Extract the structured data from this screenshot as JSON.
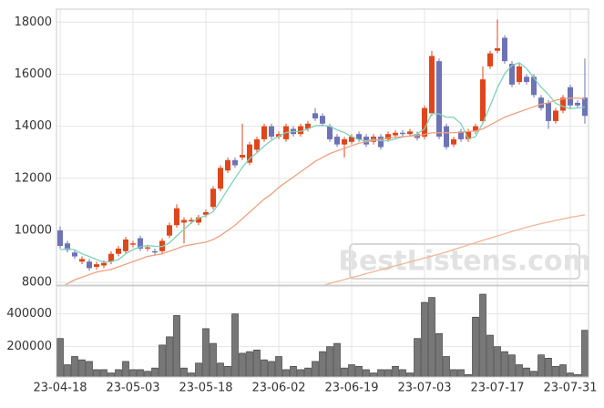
{
  "chart_data": [
    {
      "type": "candlestick",
      "open": [
        10000,
        9500,
        9150,
        8800,
        8800,
        8600,
        8650,
        8800,
        9100,
        9200,
        9450,
        9700,
        9300,
        9200,
        9200,
        9800,
        10200,
        10300,
        10350,
        10300,
        10600,
        10900,
        11600,
        12300,
        12700,
        12800,
        12600,
        13100,
        13500,
        14000,
        13600,
        13500,
        13900,
        13700,
        13900,
        14500,
        14400,
        14000,
        13600,
        13300,
        13400,
        13700,
        13600,
        13400,
        13600,
        13500,
        13650,
        13750,
        13700,
        13700,
        13600,
        14500,
        16500,
        14000,
        13300,
        13800,
        13500,
        13800,
        14200,
        16300,
        16900,
        17400,
        16400,
        15700,
        15900,
        15900,
        15100,
        14900,
        14200,
        14600,
        15500,
        14900,
        15100
      ],
      "high": [
        10150,
        9600,
        9250,
        9000,
        8900,
        8800,
        8850,
        9200,
        9400,
        9750,
        9600,
        9800,
        9450,
        9300,
        9700,
        10300,
        11000,
        10500,
        10500,
        10600,
        10800,
        11700,
        12500,
        12800,
        12800,
        14100,
        13400,
        13600,
        14100,
        14100,
        13800,
        14100,
        14000,
        14100,
        14200,
        14700,
        14500,
        14100,
        13700,
        13600,
        13700,
        13800,
        13700,
        13700,
        13700,
        13800,
        13850,
        13850,
        13900,
        13800,
        14800,
        16900,
        16600,
        14100,
        13600,
        13900,
        13900,
        14100,
        16300,
        16900,
        18100,
        17500,
        16500,
        16400,
        16000,
        16000,
        15200,
        15000,
        14700,
        15200,
        15600,
        15000,
        16600
      ],
      "low": [
        9300,
        9150,
        8900,
        8700,
        8450,
        8500,
        8550,
        8700,
        9000,
        9100,
        9350,
        9200,
        9200,
        9050,
        9100,
        9700,
        10100,
        9500,
        10250,
        10200,
        10500,
        10800,
        11500,
        12200,
        12400,
        12700,
        12500,
        13000,
        13400,
        13500,
        13500,
        13400,
        13600,
        13600,
        13800,
        14200,
        14000,
        13400,
        13200,
        12800,
        13300,
        13400,
        13200,
        13300,
        13100,
        13400,
        13550,
        13600,
        13600,
        13450,
        13500,
        14400,
        13500,
        13100,
        13200,
        13400,
        13400,
        13700,
        14100,
        16200,
        16800,
        16400,
        15500,
        15600,
        15600,
        15100,
        14600,
        13900,
        14100,
        14500,
        14700,
        14700,
        14100
      ],
      "close": [
        9400,
        9250,
        9000,
        8900,
        8550,
        8700,
        8750,
        9100,
        9300,
        9650,
        9500,
        9300,
        9350,
        9150,
        9600,
        10200,
        10850,
        10400,
        10400,
        10500,
        10700,
        11600,
        12400,
        12700,
        12500,
        12900,
        13300,
        13500,
        14000,
        13600,
        13700,
        14000,
        13700,
        14000,
        14100,
        14300,
        14100,
        13500,
        13300,
        13500,
        13600,
        13500,
        13300,
        13600,
        13200,
        13700,
        13750,
        13700,
        13800,
        13550,
        14700,
        16700,
        13600,
        13200,
        13500,
        13500,
        13800,
        14000,
        15800,
        16800,
        17000,
        16500,
        15600,
        16300,
        15700,
        15200,
        14700,
        14200,
        14600,
        15100,
        14800,
        14800,
        14400
      ],
      "up_color": "#e0461b",
      "down_color": "#6e73b5",
      "series": [
        {
          "color": "#7fd1b9",
          "values": [
            9250,
            9300,
            9250,
            9100,
            9000,
            8880,
            8780,
            8800,
            8880,
            9100,
            9260,
            9370,
            9420,
            9390,
            9380,
            9520,
            9790,
            10040,
            10290,
            10470,
            10570,
            10720,
            11120,
            11580,
            12000,
            12420,
            12760,
            12980,
            13240,
            13460,
            13620,
            13760,
            13800,
            13800,
            13900,
            14020,
            14040,
            14000,
            13860,
            13760,
            13600,
            13480,
            13440,
            13500,
            13440,
            13440,
            13510,
            13590,
            13630,
            13700,
            13900,
            14490,
            14470,
            14350,
            14340,
            14100,
            13520,
            13600,
            14120,
            14780,
            15480,
            16020,
            16340,
            16440,
            16220,
            15860,
            15500,
            15220,
            14880,
            14760,
            14680,
            14700,
            14740
          ]
        },
        {
          "color": "#f0a080",
          "values": [
            7800,
            7950,
            8100,
            8200,
            8300,
            8400,
            8450,
            8500,
            8600,
            8700,
            8800,
            8900,
            9000,
            9050,
            9100,
            9200,
            9300,
            9400,
            9450,
            9500,
            9550,
            9650,
            9800,
            10000,
            10200,
            10450,
            10700,
            10950,
            11200,
            11400,
            11650,
            11850,
            12050,
            12250,
            12450,
            12650,
            12800,
            12950,
            13050,
            13150,
            13250,
            13350,
            13400,
            13450,
            13500,
            13550,
            13580,
            13600,
            13620,
            13640,
            13680,
            13750,
            13750,
            13750,
            13750,
            13770,
            13800,
            13820,
            13900,
            14050,
            14200,
            14350,
            14450,
            14550,
            14650,
            14750,
            14850,
            14900,
            15000,
            15050,
            15080,
            15080,
            15050
          ]
        },
        {
          "color": "#f2b595",
          "values": [
            null,
            null,
            null,
            null,
            null,
            null,
            null,
            null,
            null,
            null,
            null,
            null,
            null,
            null,
            null,
            null,
            null,
            null,
            null,
            null,
            null,
            null,
            null,
            null,
            null,
            null,
            null,
            null,
            null,
            null,
            null,
            null,
            null,
            null,
            null,
            7800,
            7880,
            7960,
            8040,
            8110,
            8190,
            8260,
            8340,
            8410,
            8490,
            8560,
            8640,
            8710,
            8790,
            8860,
            8940,
            9010,
            9090,
            9170,
            9260,
            9350,
            9440,
            9530,
            9620,
            9700,
            9790,
            9870,
            9960,
            10040,
            10120,
            10190,
            10260,
            10320,
            10380,
            10440,
            10500,
            10550,
            10600
          ]
        }
      ],
      "ylim": [
        7900,
        18500
      ],
      "yticks": [
        8000,
        10000,
        12000,
        14000,
        16000,
        18000
      ],
      "grid": true,
      "watermark": "BestListens.com"
    },
    {
      "type": "bar",
      "categories": [
        "23-04-18",
        null,
        null,
        null,
        null,
        null,
        null,
        null,
        null,
        null,
        "23-05-03",
        null,
        null,
        null,
        null,
        null,
        null,
        null,
        null,
        null,
        "23-05-18",
        null,
        null,
        null,
        null,
        null,
        null,
        null,
        null,
        null,
        "23-06-02",
        null,
        null,
        null,
        null,
        null,
        null,
        null,
        null,
        null,
        "23-06-19",
        null,
        null,
        null,
        null,
        null,
        null,
        null,
        null,
        null,
        "23-07-03",
        null,
        null,
        null,
        null,
        null,
        null,
        null,
        null,
        null,
        "23-07-17",
        null,
        null,
        null,
        null,
        null,
        null,
        null,
        null,
        null,
        "23-07-31",
        null,
        null
      ],
      "values": [
        250000,
        90000,
        140000,
        120000,
        110000,
        60000,
        60000,
        40000,
        60000,
        110000,
        60000,
        60000,
        50000,
        70000,
        210000,
        260000,
        390000,
        70000,
        40000,
        100000,
        310000,
        220000,
        100000,
        80000,
        400000,
        160000,
        170000,
        180000,
        120000,
        110000,
        140000,
        60000,
        80000,
        60000,
        70000,
        110000,
        170000,
        200000,
        220000,
        70000,
        90000,
        80000,
        60000,
        40000,
        60000,
        60000,
        80000,
        60000,
        40000,
        250000,
        470000,
        500000,
        280000,
        140000,
        60000,
        60000,
        30000,
        380000,
        520000,
        270000,
        200000,
        170000,
        150000,
        90000,
        70000,
        50000,
        150000,
        130000,
        80000,
        90000,
        40000,
        30000,
        300000
      ],
      "color": "#777777",
      "ylim": [
        15000,
        570000
      ],
      "yticks": [
        200000,
        400000
      ],
      "grid": true
    }
  ]
}
